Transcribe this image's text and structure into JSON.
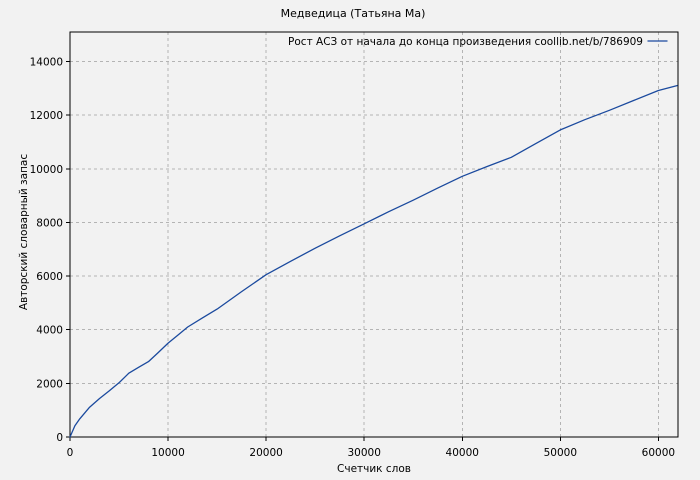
{
  "title": "Медведица (Татьяна Ма)",
  "legend": {
    "label": "Рост АСЗ от начала до конца произведения coollib.net/b/786909"
  },
  "axes": {
    "xlabel": "Счетчик слов",
    "ylabel": "Авторский словарный запас",
    "x_ticks": [
      0,
      10000,
      20000,
      30000,
      40000,
      50000,
      60000
    ],
    "y_ticks": [
      0,
      2000,
      4000,
      6000,
      8000,
      10000,
      12000,
      14000
    ]
  },
  "colors": {
    "line": "#1b4a9e",
    "grid": "#b4b4b4",
    "border": "#000000",
    "background": "#f2f2f2",
    "text": "#000000"
  },
  "chart_data": {
    "type": "line",
    "title": "Медведица (Татьяна Ма)",
    "xlabel": "Счетчик слов",
    "ylabel": "Авторский словарный запас",
    "legend_entries": [
      "Рост АСЗ от начала до конца произведения coollib.net/b/786909"
    ],
    "legend_position": "top-right-inside",
    "grid": true,
    "xlim": [
      0,
      62000
    ],
    "ylim": [
      0,
      15100
    ],
    "x": [
      0,
      500,
      1000,
      2000,
      3000,
      4000,
      5000,
      6000,
      7000,
      8000,
      9000,
      10000,
      11000,
      12000,
      13500,
      15000,
      17500,
      20000,
      22500,
      25000,
      27500,
      30000,
      32500,
      35000,
      37500,
      40000,
      42500,
      45000,
      47500,
      50000,
      52500,
      55000,
      57500,
      60000,
      61900
    ],
    "y": [
      0,
      420,
      680,
      1110,
      1430,
      1720,
      2020,
      2380,
      2600,
      2810,
      3150,
      3500,
      3800,
      4100,
      4440,
      4770,
      5420,
      6050,
      6550,
      7040,
      7500,
      7950,
      8400,
      8830,
      9280,
      9720,
      10080,
      10430,
      10940,
      11450,
      11830,
      12180,
      12550,
      12920,
      13100
    ]
  }
}
